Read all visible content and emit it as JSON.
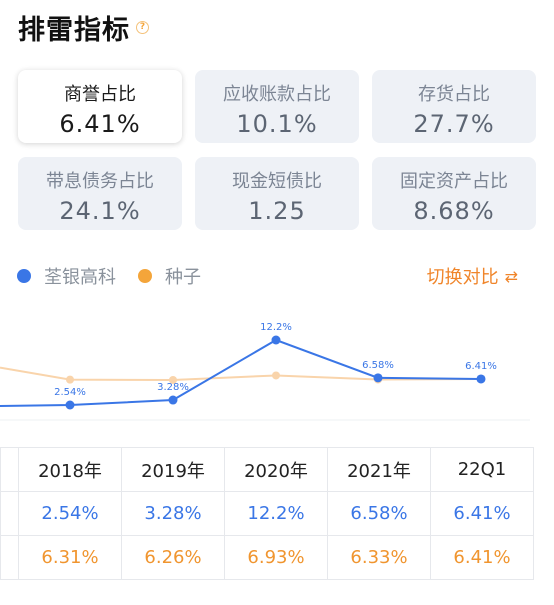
{
  "title": "排雷指标",
  "help_icon": "?",
  "cards": [
    {
      "label": "商誉占比",
      "value": "6.41%",
      "active": true
    },
    {
      "label": "应收账款占比",
      "value": "10.1%"
    },
    {
      "label": "存货占比",
      "value": "27.7%"
    },
    {
      "label": "带息债务占比",
      "value": "24.1%"
    },
    {
      "label": "现金短债比",
      "value": "1.25"
    },
    {
      "label": "固定资产占比",
      "value": "8.68%"
    }
  ],
  "legend": {
    "series_a": "荃银高科",
    "series_b": "种子",
    "compare_label": "切换对比"
  },
  "colors": {
    "blue": "#3a76e6",
    "orange": "#f4a53a",
    "orange_line": "#f9d4ab"
  },
  "chart_data": {
    "type": "line",
    "categories": [
      "2018年",
      "2019年",
      "2020年",
      "2021年",
      "22Q1"
    ],
    "series": [
      {
        "name": "荃银高科",
        "values": [
          2.54,
          3.28,
          12.2,
          6.58,
          6.41
        ],
        "labels": [
          "2.54%",
          "3.28%",
          "12.2%",
          "6.58%",
          "6.41%"
        ]
      },
      {
        "name": "种子",
        "values": [
          6.31,
          6.26,
          6.93,
          6.33,
          6.41
        ]
      }
    ]
  },
  "table": {
    "headers": [
      "2018年",
      "2019年",
      "2020年",
      "2021年",
      "22Q1"
    ],
    "row_a": [
      "2.54%",
      "3.28%",
      "12.2%",
      "6.58%",
      "6.41%"
    ],
    "row_b": [
      "6.31%",
      "6.26%",
      "6.93%",
      "6.33%",
      "6.41%"
    ]
  }
}
